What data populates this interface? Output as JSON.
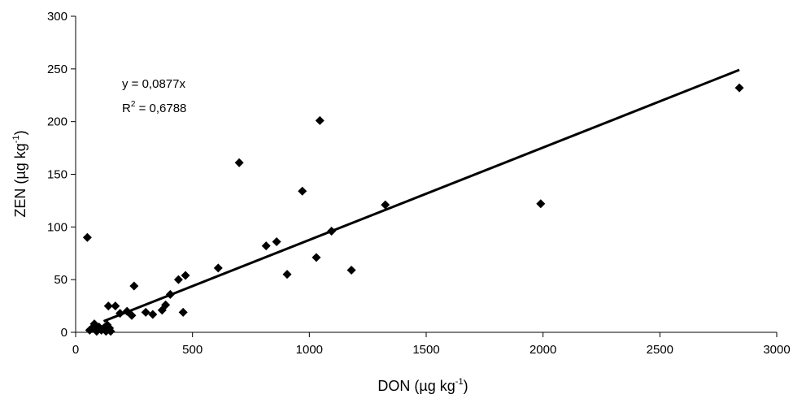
{
  "chart_data": {
    "type": "scatter",
    "xlabel": "DON (µg kg",
    "xlabel_sup": "-1",
    "xlabel_end": ")",
    "ylabel": "ZEN (µg kg",
    "ylabel_sup": "-1",
    "ylabel_end": ")",
    "xlim": [
      0,
      3000
    ],
    "ylim": [
      0,
      300
    ],
    "x_ticks": [
      0,
      500,
      1000,
      1500,
      2000,
      2500,
      3000
    ],
    "y_ticks": [
      0,
      50,
      100,
      150,
      200,
      250,
      300
    ],
    "x_tick_labels": [
      "0",
      "500",
      "1000",
      "1500",
      "2000",
      "2500",
      "3000"
    ],
    "y_tick_labels": [
      "0",
      "50",
      "100",
      "150",
      "200",
      "250",
      "300"
    ],
    "grid": false,
    "legend": "none",
    "marker": "diamond",
    "marker_color": "#000000",
    "series": [
      {
        "points": [
          [
            50,
            90
          ],
          [
            60,
            2
          ],
          [
            70,
            4
          ],
          [
            80,
            8
          ],
          [
            90,
            1
          ],
          [
            100,
            5
          ],
          [
            110,
            2
          ],
          [
            120,
            4
          ],
          [
            130,
            1
          ],
          [
            135,
            7
          ],
          [
            140,
            25
          ],
          [
            145,
            4
          ],
          [
            150,
            1
          ],
          [
            170,
            25
          ],
          [
            190,
            18
          ],
          [
            220,
            20
          ],
          [
            240,
            16
          ],
          [
            250,
            44
          ],
          [
            300,
            19
          ],
          [
            330,
            17
          ],
          [
            370,
            21
          ],
          [
            385,
            26
          ],
          [
            405,
            36
          ],
          [
            440,
            50
          ],
          [
            460,
            19
          ],
          [
            470,
            54
          ],
          [
            610,
            61
          ],
          [
            700,
            161
          ],
          [
            815,
            82
          ],
          [
            860,
            86
          ],
          [
            905,
            55
          ],
          [
            970,
            134
          ],
          [
            1030,
            71
          ],
          [
            1045,
            201
          ],
          [
            1095,
            96
          ],
          [
            1180,
            59
          ],
          [
            1325,
            121
          ],
          [
            1990,
            122
          ],
          [
            2840,
            232
          ]
        ]
      }
    ],
    "trendline": {
      "slope": 0.0877,
      "x_range": [
        120,
        2840
      ],
      "color": "#000000",
      "equation_label": "y = 0,0877x",
      "r2_prefix": "R",
      "r2_sup": "2",
      "r2_suffix": " = 0,6788"
    }
  }
}
